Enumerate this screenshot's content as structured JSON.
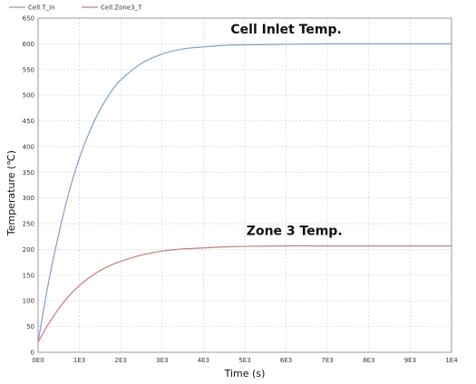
{
  "chart_data": {
    "type": "line",
    "xlabel": "Time (s)",
    "ylabel": "Temperature (℃)",
    "xlim": [
      0,
      10000
    ],
    "ylim": [
      0,
      650
    ],
    "xticks": [
      0,
      1000,
      2000,
      3000,
      4000,
      5000,
      6000,
      7000,
      8000,
      9000,
      10000
    ],
    "xtick_labels": [
      "0E0",
      "1E3",
      "2E3",
      "3E3",
      "4E3",
      "5E3",
      "6E3",
      "7E3",
      "8E3",
      "9E3",
      "1E4"
    ],
    "yticks": [
      0,
      50,
      100,
      150,
      200,
      250,
      300,
      350,
      400,
      450,
      500,
      550,
      600,
      650
    ],
    "ytick_labels": [
      "0",
      "50",
      "100",
      "150",
      "200",
      "250",
      "300",
      "350",
      "400",
      "450",
      "500",
      "550",
      "600",
      "650"
    ],
    "grid": true,
    "legend_placement": "top-left",
    "series": [
      {
        "name": "Cell.T_in",
        "color": "#7f9fc6",
        "x": [
          0,
          250,
          500,
          750,
          1000,
          1250,
          1500,
          1750,
          2000,
          2500,
          3000,
          3500,
          4000,
          4500,
          5000,
          6000,
          7000,
          8000,
          9000,
          10000
        ],
        "y": [
          20,
          135,
          230,
          312,
          378,
          430,
          472,
          505,
          530,
          562,
          580,
          590,
          594,
          597,
          598,
          599,
          600,
          600,
          600,
          600
        ]
      },
      {
        "name": "Cell.Zone3_T",
        "color": "#c67b7b",
        "x": [
          0,
          250,
          500,
          750,
          1000,
          1250,
          1500,
          1750,
          2000,
          2500,
          3000,
          3500,
          4000,
          4500,
          5000,
          6000,
          7000,
          8000,
          9000,
          10000
        ],
        "y": [
          20,
          55,
          85,
          110,
          130,
          146,
          159,
          169,
          177,
          189,
          197,
          201,
          203,
          205,
          206,
          207,
          207,
          207,
          207,
          207
        ]
      }
    ],
    "annotations": [
      {
        "text": "Cell Inlet Temp.",
        "x": 6000,
        "y": 620
      },
      {
        "text": "Zone 3 Temp.",
        "x": 6200,
        "y": 228
      }
    ]
  }
}
